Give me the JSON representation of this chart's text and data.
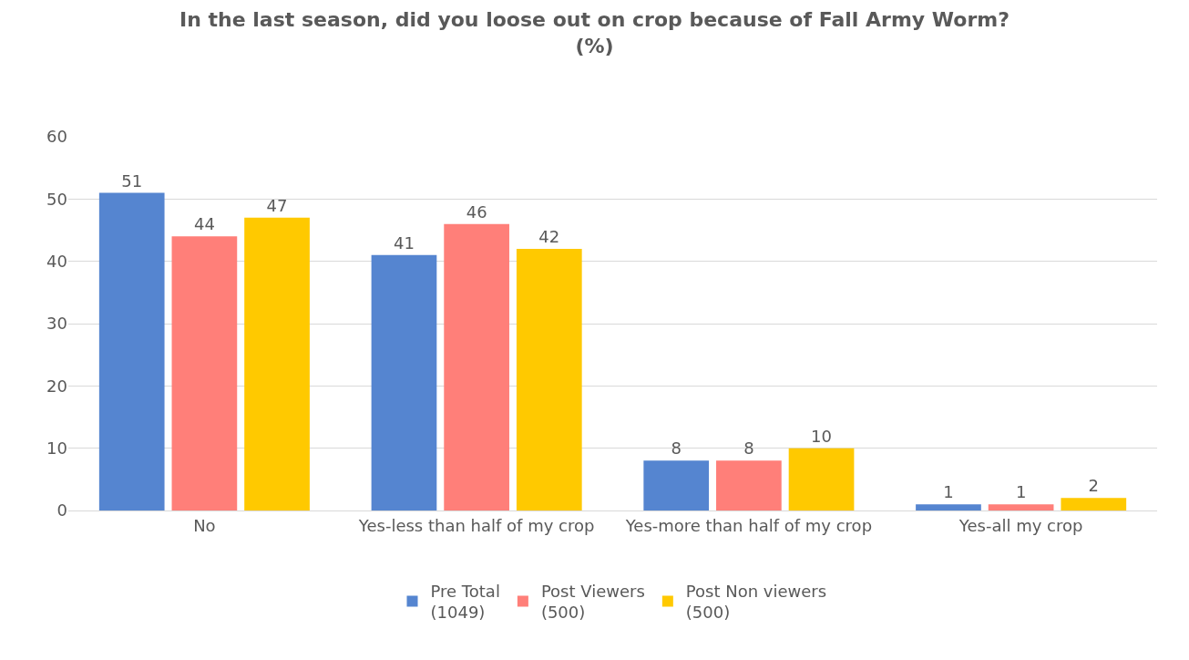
{
  "chart_data": {
    "type": "bar",
    "title": "In the last season, did you loose out on crop because of Fall Army Worm?\n(%)",
    "categories": [
      "No",
      "Yes-less than half of my crop",
      "Yes-more than half of my crop",
      "Yes-all my crop"
    ],
    "series": [
      {
        "name": "Pre Total\n(1049)",
        "color": "#5585d0",
        "values": [
          51,
          41,
          8,
          1
        ]
      },
      {
        "name": "Post Viewers\n(500)",
        "color": "#ff7f79",
        "values": [
          44,
          46,
          8,
          1
        ]
      },
      {
        "name": "Post Non viewers\n(500)",
        "color": "#ffc900",
        "values": [
          47,
          42,
          10,
          2
        ]
      }
    ],
    "ylim": [
      0,
      60
    ],
    "yticks": [
      0,
      10,
      20,
      30,
      40,
      50,
      60
    ],
    "grid": "y",
    "legend": "bottom",
    "data_labels": true
  }
}
